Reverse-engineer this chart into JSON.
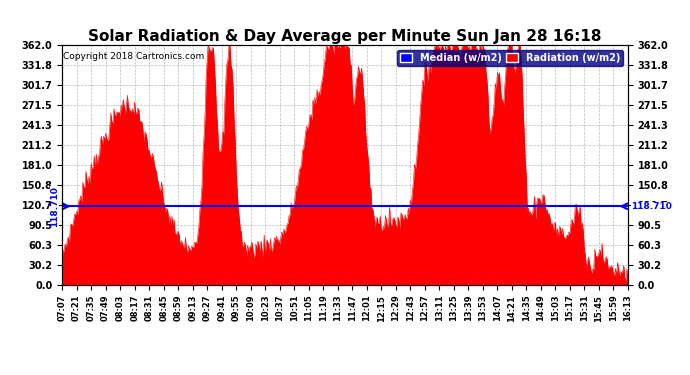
{
  "title": "Solar Radiation & Day Average per Minute Sun Jan 28 16:18",
  "copyright": "Copyright 2018 Cartronics.com",
  "median_value": 118.71,
  "ymax": 362.0,
  "ymin": 0.0,
  "yticks": [
    0.0,
    30.2,
    60.3,
    90.5,
    120.7,
    150.8,
    181.0,
    211.2,
    241.3,
    271.5,
    301.7,
    331.8,
    362.0
  ],
  "background_color": "#ffffff",
  "fill_color": "#ff0000",
  "median_color": "#0000ff",
  "title_fontsize": 11,
  "legend_median_label": "Median (w/m2)",
  "legend_radiation_label": "Radiation (w/m2)",
  "xtick_labels": [
    "07:07",
    "07:21",
    "07:35",
    "07:49",
    "08:03",
    "08:17",
    "08:31",
    "08:45",
    "08:59",
    "09:13",
    "09:27",
    "09:41",
    "09:55",
    "10:09",
    "10:23",
    "10:37",
    "10:51",
    "11:05",
    "11:19",
    "11:33",
    "11:47",
    "12:01",
    "12:15",
    "12:29",
    "12:43",
    "12:57",
    "13:11",
    "13:25",
    "13:39",
    "13:53",
    "14:07",
    "14:21",
    "14:35",
    "14:49",
    "15:03",
    "15:17",
    "15:31",
    "15:45",
    "15:59",
    "16:13"
  ],
  "median_label": "118.710"
}
